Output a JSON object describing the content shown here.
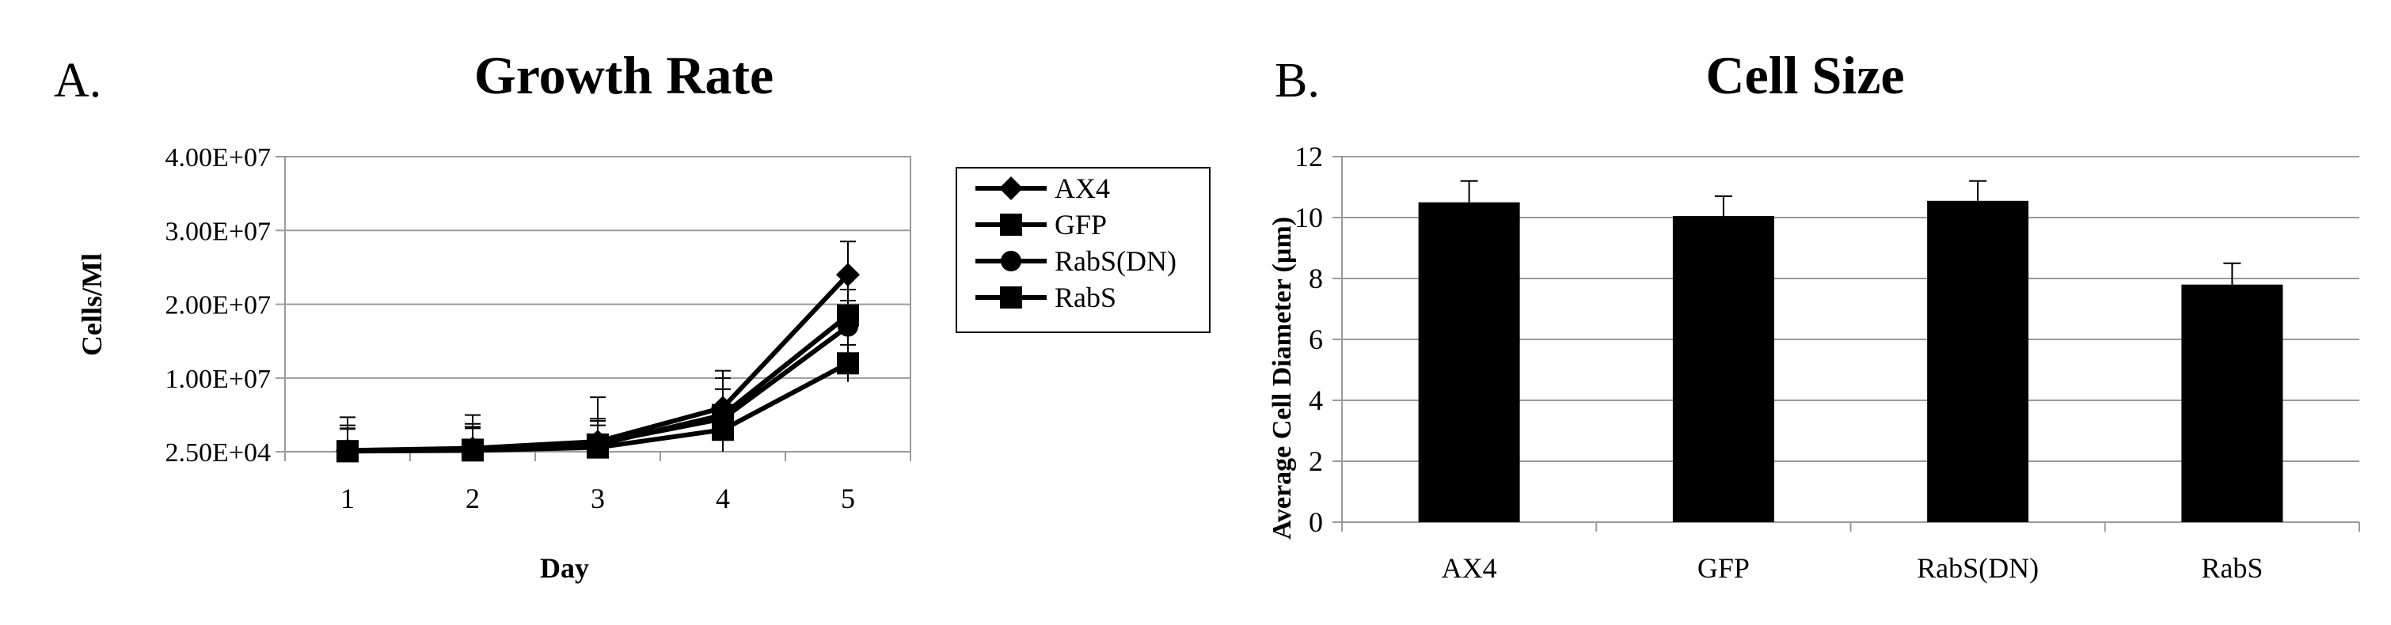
{
  "chart_data": [
    {
      "type": "line",
      "panel_label": "A.",
      "title": "Growth Rate",
      "xlabel": "Day",
      "ylabel": "Cells/Ml",
      "categories": [
        "1",
        "2",
        "3",
        "4",
        "5"
      ],
      "ytick_labels": [
        "2.50E+04",
        "1.00E+07",
        "2.00E+07",
        "3.00E+07",
        "4.00E+07"
      ],
      "ytick_values": [
        25000,
        10000000,
        20000000,
        30000000,
        40000000
      ],
      "ylim": [
        25000,
        40000000
      ],
      "grid": true,
      "legend_position": "right",
      "series": [
        {
          "name": "AX4",
          "marker": "diamond",
          "values": [
            200000,
            500000,
            1400000,
            6000000,
            24000000
          ],
          "errors": [
            4500000,
            4500000,
            6000000,
            5000000,
            4500000
          ]
        },
        {
          "name": "GFP",
          "marker": "square",
          "values": [
            100000,
            300000,
            1000000,
            5000000,
            18500000
          ],
          "errors": [
            3500000,
            3500000,
            3500000,
            5000000,
            3500000
          ]
        },
        {
          "name": "RabS(DN)",
          "marker": "circle",
          "values": [
            200000,
            400000,
            1200000,
            4500000,
            17000000
          ],
          "errors": [
            3000000,
            3000000,
            3000000,
            4000000,
            3500000
          ]
        },
        {
          "name": "RabS",
          "marker": "square",
          "values": [
            100000,
            200000,
            600000,
            3000000,
            12000000
          ],
          "errors": [
            3000000,
            3000000,
            3000000,
            3000000,
            2500000
          ]
        }
      ],
      "series_color": "#000000"
    },
    {
      "type": "bar",
      "panel_label": "B.",
      "title": "Cell Size",
      "xlabel": "",
      "ylabel": "Average Cell Diameter (µm)",
      "categories": [
        "AX4",
        "GFP",
        "RabS(DN)",
        "RabS"
      ],
      "values": [
        10.5,
        10.05,
        10.55,
        7.8
      ],
      "errors": [
        0.7,
        0.65,
        0.65,
        0.7
      ],
      "ytick_labels": [
        "0",
        "2",
        "4",
        "6",
        "8",
        "10",
        "12"
      ],
      "ytick_values": [
        0,
        2,
        4,
        6,
        8,
        10,
        12
      ],
      "ylim": [
        0,
        12
      ],
      "grid": true,
      "bar_color": "#000000"
    }
  ]
}
